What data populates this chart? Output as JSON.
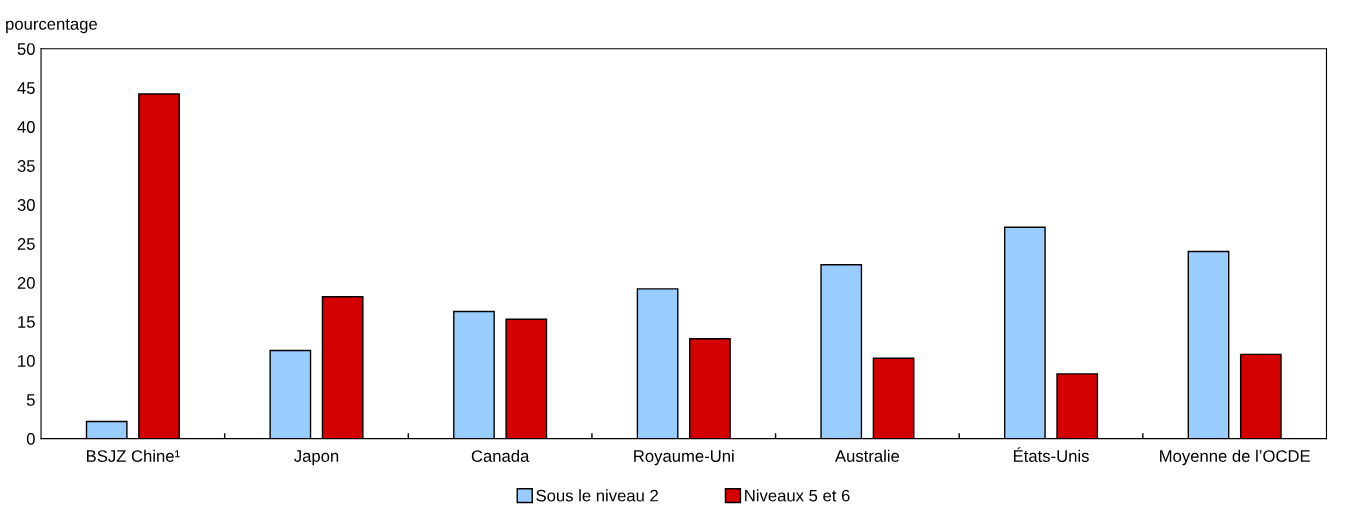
{
  "chart_data": {
    "type": "bar",
    "ylabel": "pourcentage",
    "categories": [
      "BSJZ Chine¹",
      "Japon",
      "Canada",
      "Royaume-Uni",
      "Australie",
      "États-Unis",
      "Moyenne de l’OCDE"
    ],
    "series": [
      {
        "name": "Sous le niveau 2",
        "color": "#99ccff",
        "values": [
          2.2,
          11.3,
          16.3,
          19.2,
          22.3,
          27.1,
          24.0
        ]
      },
      {
        "name": "Niveaux 5 et 6",
        "color": "#d40000",
        "values": [
          44.2,
          18.2,
          15.3,
          12.8,
          10.3,
          8.3,
          10.8
        ]
      }
    ],
    "ylim": [
      0,
      50
    ],
    "yticks": [
      0,
      5,
      10,
      15,
      20,
      25,
      30,
      35,
      40,
      45,
      50
    ],
    "grid": false,
    "legend": "bottom"
  }
}
